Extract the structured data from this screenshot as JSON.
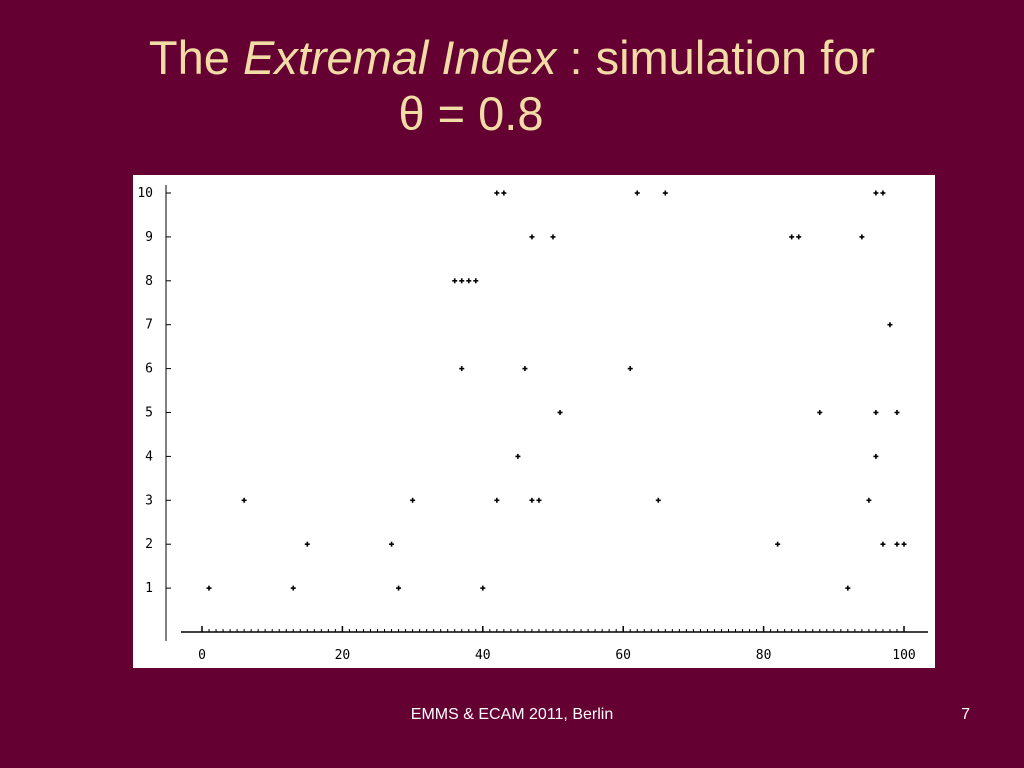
{
  "slide": {
    "title_prefix": "The ",
    "title_italic": "Extremal Index",
    "title_suffix": " : simulation for",
    "title_line2": "θ = 0.8",
    "footer": "EMMS & ECAM 2011, Berlin",
    "page_number": "7",
    "colors": {
      "background": "#650033",
      "title": "#f1dca6",
      "footer": "#ffffff"
    }
  },
  "chart_data": {
    "type": "scatter",
    "title": "",
    "xlabel": "",
    "ylabel": "",
    "xlim": [
      0,
      100
    ],
    "ylim": [
      0,
      10
    ],
    "x_ticks": [
      "0",
      "20",
      "40",
      "60",
      "80",
      "100"
    ],
    "y_ticks": [
      "1",
      "2",
      "3",
      "4",
      "5",
      "6",
      "7",
      "8",
      "9",
      "10"
    ],
    "grid": false,
    "marker": "plus",
    "points": [
      [
        1,
        1
      ],
      [
        6,
        3
      ],
      [
        13,
        1
      ],
      [
        15,
        2
      ],
      [
        27,
        2
      ],
      [
        28,
        1
      ],
      [
        30,
        3
      ],
      [
        36,
        8
      ],
      [
        37,
        8
      ],
      [
        38,
        8
      ],
      [
        39,
        8
      ],
      [
        37,
        6
      ],
      [
        40,
        1
      ],
      [
        42,
        10
      ],
      [
        43,
        10
      ],
      [
        42,
        3
      ],
      [
        45,
        4
      ],
      [
        46,
        6
      ],
      [
        47,
        9
      ],
      [
        47,
        3
      ],
      [
        48,
        3
      ],
      [
        50,
        9
      ],
      [
        51,
        5
      ],
      [
        61,
        6
      ],
      [
        62,
        10
      ],
      [
        65,
        3
      ],
      [
        66,
        10
      ],
      [
        82,
        2
      ],
      [
        84,
        9
      ],
      [
        85,
        9
      ],
      [
        88,
        5
      ],
      [
        92,
        1
      ],
      [
        94,
        9
      ],
      [
        95,
        3
      ],
      [
        96,
        10
      ],
      [
        97,
        10
      ],
      [
        96,
        5
      ],
      [
        96,
        4
      ],
      [
        97,
        2
      ],
      [
        98,
        7
      ],
      [
        99,
        5
      ],
      [
        99,
        2
      ],
      [
        100,
        2
      ]
    ]
  }
}
